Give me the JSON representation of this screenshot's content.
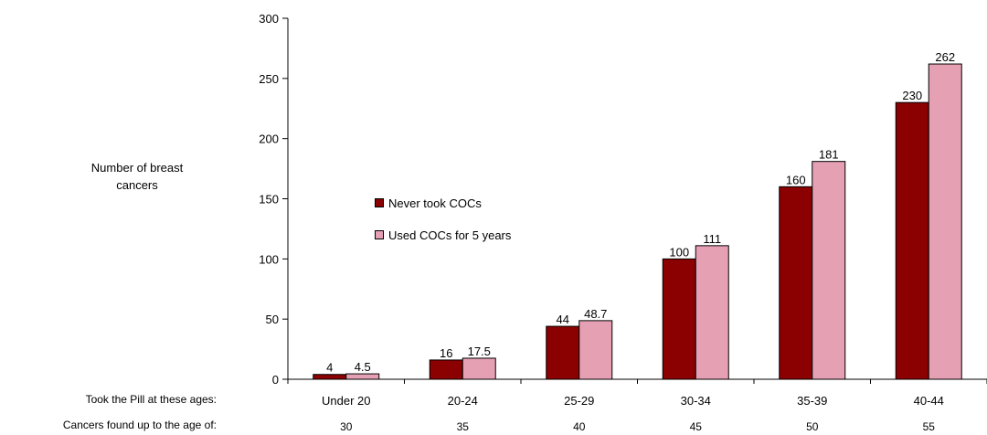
{
  "chart_data": {
    "type": "bar",
    "ylabel_lines": [
      "Number of breast",
      "cancers"
    ],
    "ylim": [
      0,
      300
    ],
    "yticks": [
      0,
      50,
      100,
      150,
      200,
      250,
      300
    ],
    "categories": [
      "Under 20",
      "20-24",
      "25-29",
      "30-34",
      "35-39",
      "40-44"
    ],
    "second_row": {
      "title": "Cancers found up to the age of:",
      "values": [
        "30",
        "35",
        "40",
        "45",
        "50",
        "55"
      ]
    },
    "first_row_title": "Took the Pill at these ages:",
    "legend_position": "center-left",
    "series": [
      {
        "name": "Never took COCs",
        "values": [
          4,
          16,
          44,
          100,
          160,
          230
        ],
        "labels": [
          "4",
          "16",
          "44",
          "100",
          "160",
          "230"
        ],
        "color": "#8B0000"
      },
      {
        "name": "Used COCs for 5 years",
        "values": [
          4.5,
          17.5,
          48.7,
          111,
          181,
          262
        ],
        "labels": [
          "4.5",
          "17.5",
          "48.7",
          "111",
          "181",
          "262"
        ],
        "color": "#E6A0B4"
      }
    ]
  }
}
